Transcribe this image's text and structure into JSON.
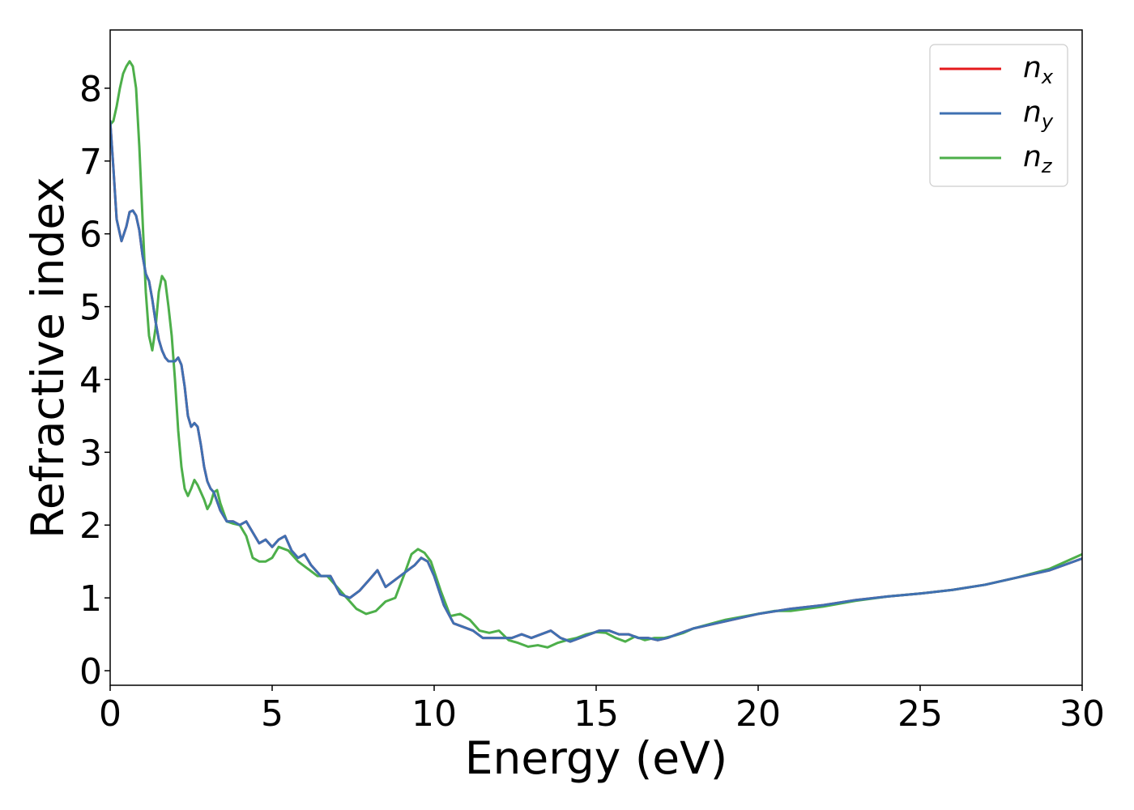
{
  "chart_data": {
    "type": "line",
    "xlabel": "Energy (eV)",
    "ylabel": "Refractive index",
    "xlim": [
      0,
      30
    ],
    "ylim": [
      -0.2,
      8.8
    ],
    "xticks": [
      0,
      5,
      10,
      15,
      20,
      25,
      30
    ],
    "yticks": [
      0,
      1,
      2,
      3,
      4,
      5,
      6,
      7,
      8
    ],
    "grid": false,
    "legend_position": "top-right",
    "series": [
      {
        "name": "n_x",
        "label_main": "n",
        "label_sub": "x",
        "color": "#e41a1c",
        "x": [
          0,
          0.1,
          0.2,
          0.35,
          0.5,
          0.6,
          0.7,
          0.8,
          0.9,
          1.0,
          1.1,
          1.2,
          1.3,
          1.4,
          1.5,
          1.6,
          1.7,
          1.8,
          1.9,
          2.0,
          2.1,
          2.2,
          2.3,
          2.4,
          2.5,
          2.6,
          2.7,
          2.8,
          2.9,
          3.0,
          3.1,
          3.2,
          3.4,
          3.6,
          3.8,
          4.0,
          4.2,
          4.4,
          4.6,
          4.8,
          5.0,
          5.2,
          5.4,
          5.6,
          5.8,
          6.0,
          6.2,
          6.5,
          6.8,
          7.1,
          7.4,
          7.7,
          8.0,
          8.25,
          8.5,
          8.8,
          9.1,
          9.4,
          9.6,
          9.8,
          10.0,
          10.3,
          10.6,
          10.9,
          11.2,
          11.5,
          11.8,
          12.1,
          12.4,
          12.7,
          13.0,
          13.3,
          13.6,
          13.9,
          14.2,
          14.5,
          14.8,
          15.1,
          15.4,
          15.7,
          16.0,
          16.3,
          16.6,
          16.9,
          17.2,
          17.5,
          18,
          19,
          20,
          21,
          22,
          23,
          24,
          25,
          26,
          27,
          28,
          29,
          30
        ],
        "values": [
          7.55,
          6.9,
          6.2,
          5.9,
          6.1,
          6.3,
          6.32,
          6.25,
          6.05,
          5.7,
          5.45,
          5.35,
          5.1,
          4.8,
          4.55,
          4.4,
          4.3,
          4.25,
          4.25,
          4.25,
          4.3,
          4.2,
          3.9,
          3.5,
          3.35,
          3.4,
          3.35,
          3.1,
          2.8,
          2.6,
          2.5,
          2.45,
          2.2,
          2.05,
          2.05,
          2.0,
          2.05,
          1.9,
          1.75,
          1.8,
          1.7,
          1.8,
          1.85,
          1.65,
          1.55,
          1.6,
          1.45,
          1.3,
          1.3,
          1.05,
          1.0,
          1.1,
          1.25,
          1.38,
          1.15,
          1.25,
          1.35,
          1.45,
          1.55,
          1.5,
          1.3,
          0.9,
          0.65,
          0.6,
          0.55,
          0.45,
          0.45,
          0.45,
          0.45,
          0.5,
          0.45,
          0.5,
          0.55,
          0.45,
          0.4,
          0.45,
          0.5,
          0.55,
          0.55,
          0.5,
          0.5,
          0.45,
          0.45,
          0.42,
          0.45,
          0.5,
          0.58,
          0.68,
          0.78,
          0.85,
          0.9,
          0.97,
          1.02,
          1.06,
          1.11,
          1.18,
          1.28,
          1.38,
          1.54
        ]
      },
      {
        "name": "n_y",
        "label_main": "n",
        "label_sub": "y",
        "color": "#3f70b2",
        "x": [
          0,
          0.1,
          0.2,
          0.35,
          0.5,
          0.6,
          0.7,
          0.8,
          0.9,
          1.0,
          1.1,
          1.2,
          1.3,
          1.4,
          1.5,
          1.6,
          1.7,
          1.8,
          1.9,
          2.0,
          2.1,
          2.2,
          2.3,
          2.4,
          2.5,
          2.6,
          2.7,
          2.8,
          2.9,
          3.0,
          3.1,
          3.2,
          3.4,
          3.6,
          3.8,
          4.0,
          4.2,
          4.4,
          4.6,
          4.8,
          5.0,
          5.2,
          5.4,
          5.6,
          5.8,
          6.0,
          6.2,
          6.5,
          6.8,
          7.1,
          7.4,
          7.7,
          8.0,
          8.25,
          8.5,
          8.8,
          9.1,
          9.4,
          9.6,
          9.8,
          10.0,
          10.3,
          10.6,
          10.9,
          11.2,
          11.5,
          11.8,
          12.1,
          12.4,
          12.7,
          13.0,
          13.3,
          13.6,
          13.9,
          14.2,
          14.5,
          14.8,
          15.1,
          15.4,
          15.7,
          16.0,
          16.3,
          16.6,
          16.9,
          17.2,
          17.5,
          18,
          19,
          20,
          21,
          22,
          23,
          24,
          25,
          26,
          27,
          28,
          29,
          30
        ],
        "values": [
          7.55,
          6.9,
          6.2,
          5.9,
          6.1,
          6.3,
          6.32,
          6.25,
          6.05,
          5.7,
          5.45,
          5.35,
          5.1,
          4.8,
          4.55,
          4.4,
          4.3,
          4.25,
          4.25,
          4.25,
          4.3,
          4.2,
          3.9,
          3.5,
          3.35,
          3.4,
          3.35,
          3.1,
          2.8,
          2.6,
          2.5,
          2.45,
          2.2,
          2.05,
          2.05,
          2.0,
          2.05,
          1.9,
          1.75,
          1.8,
          1.7,
          1.8,
          1.85,
          1.65,
          1.55,
          1.6,
          1.45,
          1.3,
          1.3,
          1.05,
          1.0,
          1.1,
          1.25,
          1.38,
          1.15,
          1.25,
          1.35,
          1.45,
          1.55,
          1.5,
          1.3,
          0.9,
          0.65,
          0.6,
          0.55,
          0.45,
          0.45,
          0.45,
          0.45,
          0.5,
          0.45,
          0.5,
          0.55,
          0.45,
          0.4,
          0.45,
          0.5,
          0.55,
          0.55,
          0.5,
          0.5,
          0.45,
          0.45,
          0.42,
          0.45,
          0.5,
          0.58,
          0.68,
          0.78,
          0.85,
          0.9,
          0.97,
          1.02,
          1.06,
          1.11,
          1.18,
          1.28,
          1.38,
          1.54
        ]
      },
      {
        "name": "n_z",
        "label_main": "n",
        "label_sub": "z",
        "color": "#4daf4a",
        "x": [
          0,
          0.1,
          0.2,
          0.3,
          0.4,
          0.5,
          0.6,
          0.7,
          0.8,
          0.9,
          1.0,
          1.1,
          1.2,
          1.3,
          1.4,
          1.5,
          1.6,
          1.7,
          1.8,
          1.9,
          2.0,
          2.1,
          2.2,
          2.3,
          2.4,
          2.5,
          2.6,
          2.7,
          2.8,
          2.9,
          3.0,
          3.1,
          3.2,
          3.3,
          3.4,
          3.6,
          3.8,
          4.0,
          4.2,
          4.4,
          4.6,
          4.8,
          5.0,
          5.2,
          5.5,
          5.8,
          6.1,
          6.4,
          6.7,
          7.0,
          7.3,
          7.6,
          7.9,
          8.2,
          8.5,
          8.8,
          9.1,
          9.3,
          9.5,
          9.7,
          9.9,
          10.2,
          10.5,
          10.8,
          11.1,
          11.4,
          11.7,
          12.0,
          12.3,
          12.6,
          12.9,
          13.2,
          13.5,
          13.8,
          14.1,
          14.4,
          14.7,
          15.0,
          15.3,
          15.6,
          15.9,
          16.2,
          16.5,
          16.8,
          17.1,
          17.4,
          17.7,
          18,
          19,
          20,
          20.5,
          21,
          22,
          23,
          24,
          25,
          26,
          27,
          28,
          29,
          30
        ],
        "values": [
          7.5,
          7.55,
          7.75,
          8.0,
          8.2,
          8.3,
          8.37,
          8.3,
          8.0,
          7.2,
          6.2,
          5.2,
          4.6,
          4.4,
          4.7,
          5.2,
          5.42,
          5.35,
          5.0,
          4.6,
          4.0,
          3.3,
          2.8,
          2.5,
          2.4,
          2.5,
          2.62,
          2.55,
          2.45,
          2.35,
          2.22,
          2.3,
          2.45,
          2.48,
          2.3,
          2.05,
          2.02,
          2.0,
          1.85,
          1.55,
          1.5,
          1.5,
          1.55,
          1.7,
          1.65,
          1.5,
          1.4,
          1.3,
          1.3,
          1.15,
          1.0,
          0.85,
          0.78,
          0.82,
          0.95,
          1.0,
          1.35,
          1.6,
          1.67,
          1.62,
          1.5,
          1.1,
          0.75,
          0.78,
          0.7,
          0.55,
          0.52,
          0.55,
          0.42,
          0.38,
          0.33,
          0.35,
          0.32,
          0.38,
          0.42,
          0.45,
          0.5,
          0.53,
          0.52,
          0.45,
          0.4,
          0.47,
          0.42,
          0.45,
          0.45,
          0.48,
          0.52,
          0.58,
          0.7,
          0.78,
          0.82,
          0.82,
          0.88,
          0.96,
          1.02,
          1.06,
          1.11,
          1.18,
          1.28,
          1.4,
          1.6
        ]
      }
    ]
  }
}
